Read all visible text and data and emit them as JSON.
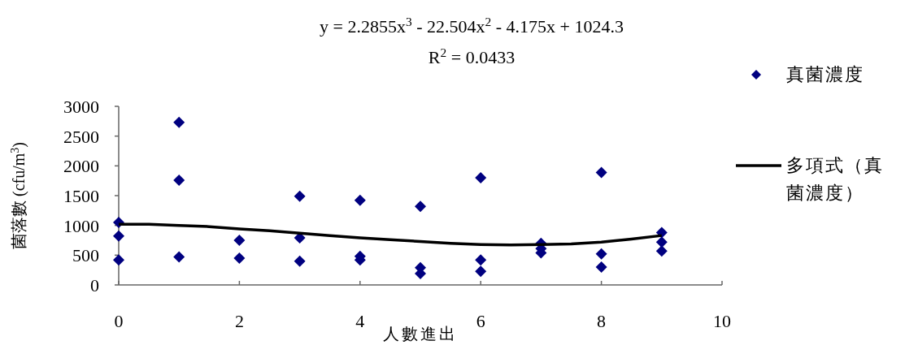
{
  "chart_data": {
    "type": "scatter",
    "title": "y = 2.2855x$^{3}$ - 22.504x$^{2}$ - 4.175x + 1024.3",
    "subtitle": "R$^{2}$ = 0.0433",
    "xlabel": "人數進出",
    "ylabel": "菌落數 (cfu/m$^{3}$)",
    "xlim": [
      0,
      10
    ],
    "xticks": [
      0,
      2,
      4,
      6,
      8,
      10
    ],
    "ylim": [
      0,
      3000
    ],
    "yticks": [
      0,
      500,
      1000,
      1500,
      2000,
      2500,
      3000
    ],
    "grid": false,
    "legend": "right",
    "series": [
      {
        "name": "真菌濃度",
        "marker": "diamond",
        "color": "#000080",
        "x": [
          0,
          0,
          0,
          1,
          1,
          1,
          2,
          2,
          3,
          3,
          3,
          4,
          4,
          4,
          5,
          5,
          5,
          6,
          6,
          6,
          7,
          7,
          7,
          8,
          8,
          8,
          9,
          9,
          9
        ],
        "values": [
          1050,
          820,
          420,
          2730,
          1760,
          470,
          750,
          450,
          1490,
          790,
          400,
          1420,
          480,
          420,
          1320,
          290,
          190,
          1800,
          420,
          230,
          700,
          610,
          540,
          1890,
          520,
          300,
          880,
          720,
          570
        ]
      },
      {
        "name": "多項式（真菌濃度）",
        "type": "line",
        "marker": "none",
        "line_style": "solid",
        "color": "#000000",
        "x": [
          0,
          0.5,
          1,
          1.5,
          2,
          2.5,
          3,
          3.5,
          4,
          4.5,
          5,
          5.5,
          6,
          6.5,
          7,
          7.5,
          8,
          8.5,
          9
        ],
        "values": [
          1020,
          1020,
          1000,
          980,
          940,
          910,
          870,
          830,
          790,
          760,
          730,
          700,
          680,
          670,
          680,
          690,
          720,
          770,
          830
        ]
      }
    ]
  }
}
